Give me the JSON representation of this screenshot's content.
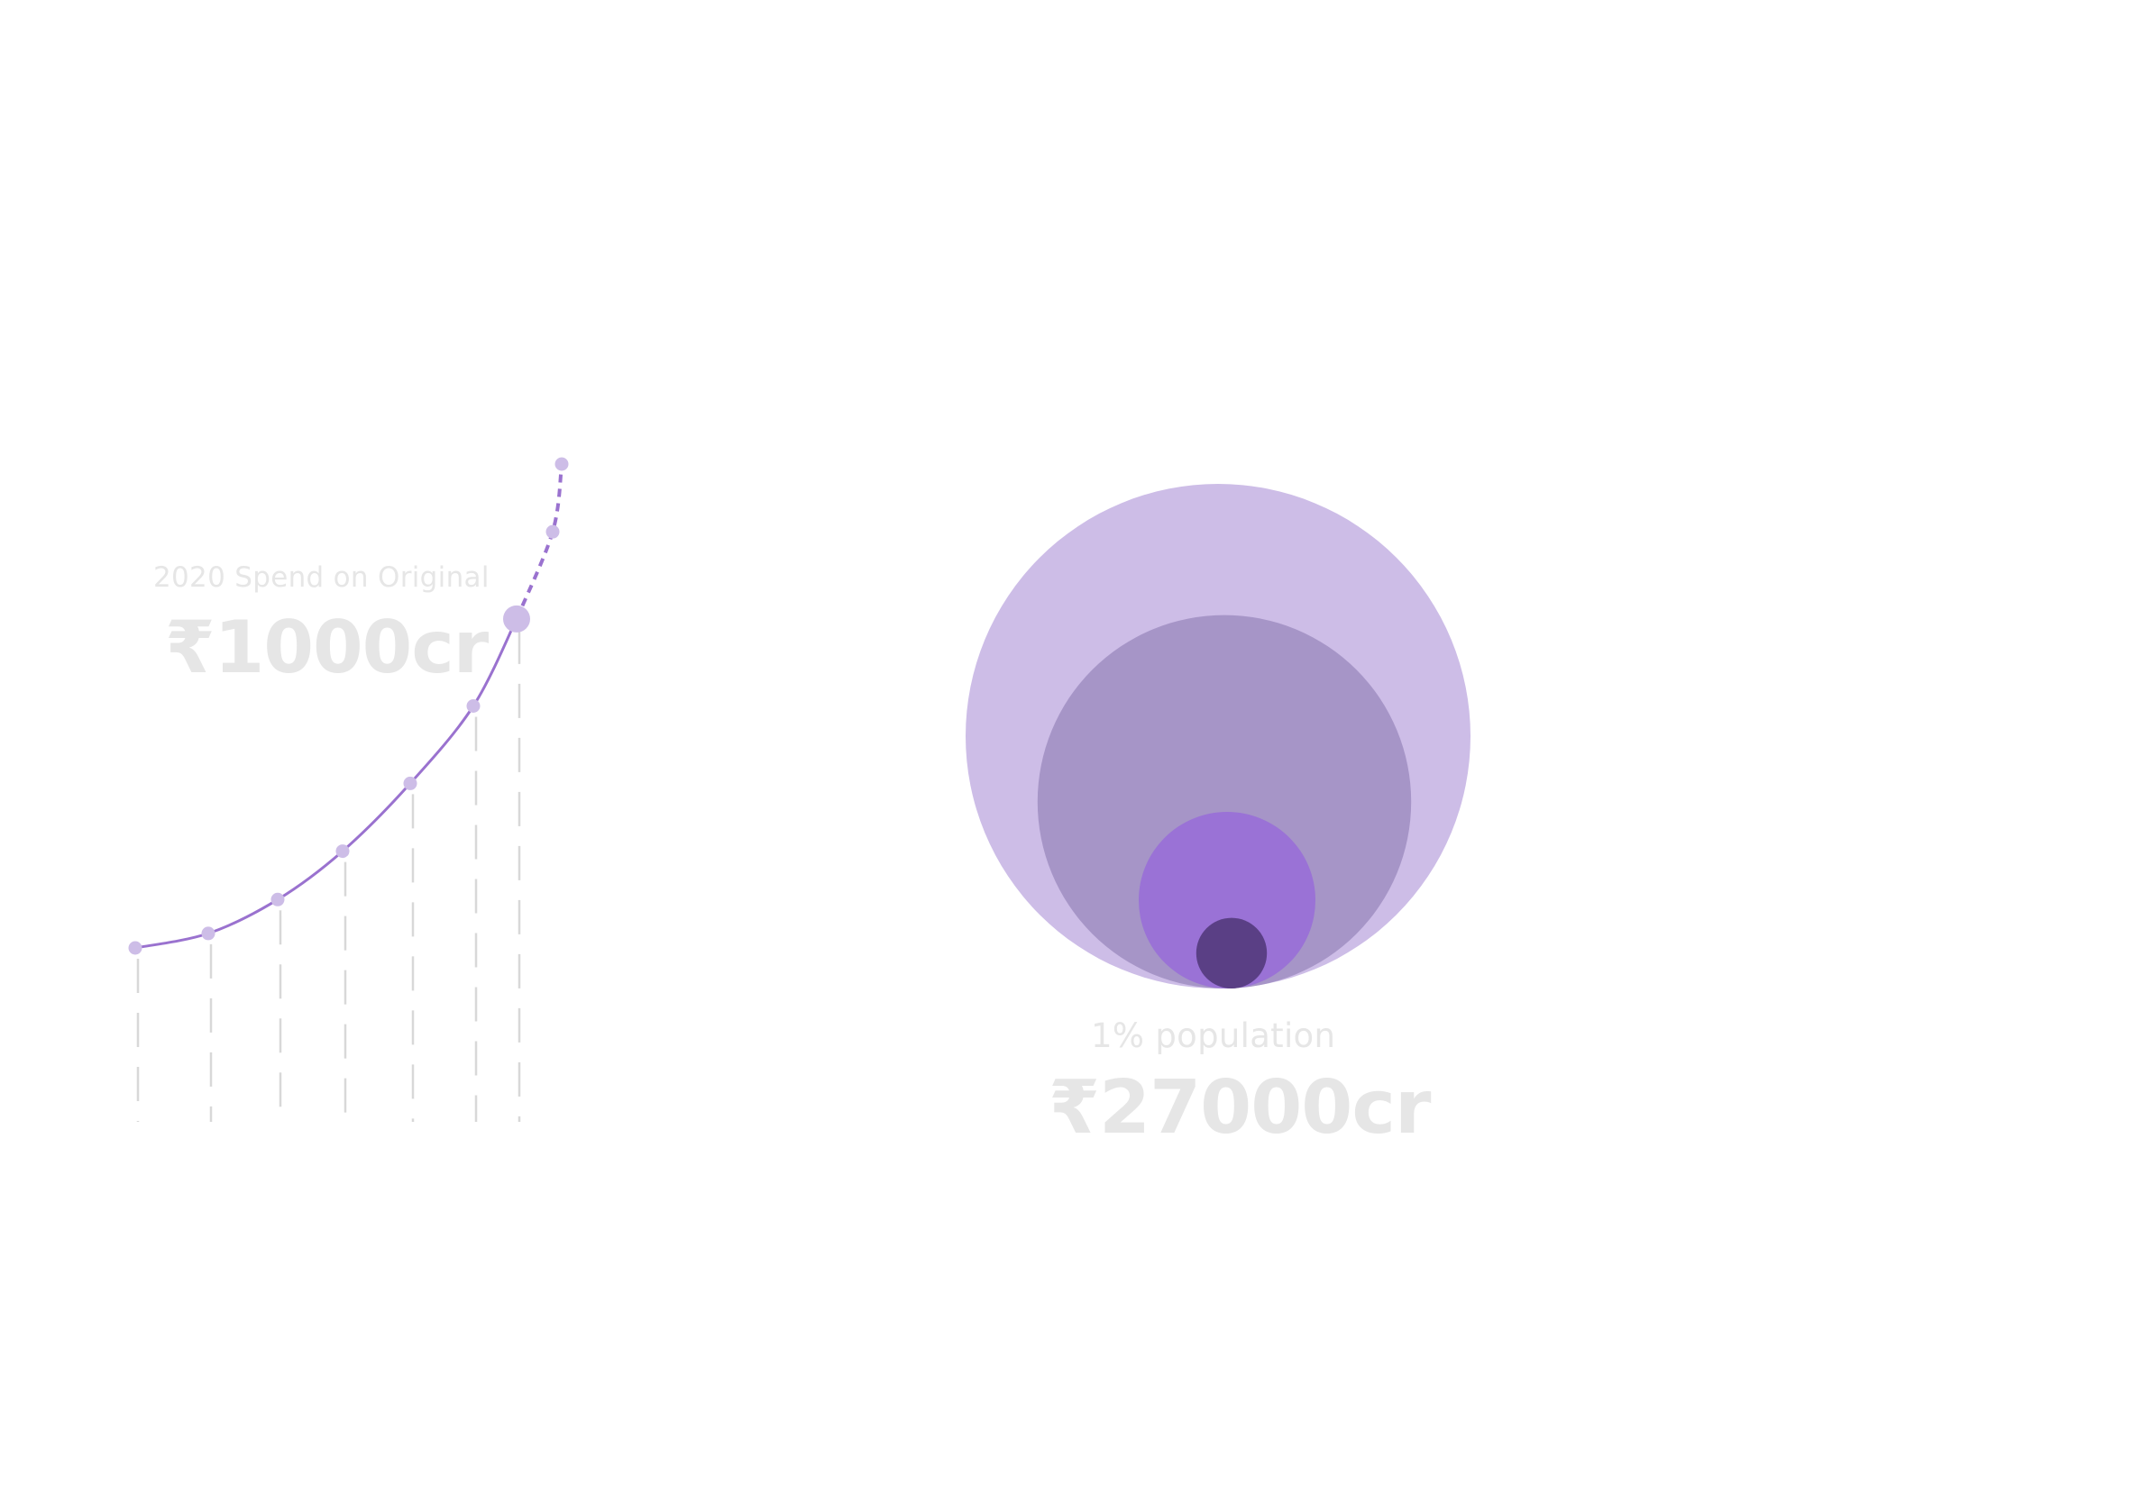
{
  "colors": {
    "line": "#9a72cf",
    "point": "#cdbde7",
    "dashed_gridline": "#d8d8d8",
    "circle_outer": "#cdbde7",
    "circle_second": "#a695c7",
    "circle_third": "#9a72d6",
    "circle_inner": "#5a3f85",
    "caption_text": "#e6e6e6"
  },
  "spend_caption": {
    "label": "2020 Spend on Original",
    "value": "₹1000cr"
  },
  "population_caption": {
    "label": "1% population",
    "value": "₹27000cr"
  },
  "chart_data": [
    {
      "type": "line",
      "title": "",
      "xlabel": "",
      "ylabel": "",
      "grid": "dashed vertical drop lines under each point",
      "legend": "none",
      "x": [
        1,
        2,
        3,
        4,
        5,
        6,
        7,
        8,
        9
      ],
      "series": [
        {
          "values": [
            0.0,
            0.03,
            0.1,
            0.2,
            0.34,
            0.5,
            0.68,
            0.86,
            1.0
          ],
          "style": "solid for first 7 points, dashed projection for last 2",
          "highlighted_point_index": 6
        }
      ]
    },
    {
      "type": "nested-circles",
      "title": "",
      "legend": "none",
      "values": [
        1.0,
        0.74,
        0.35,
        0.14
      ],
      "alignment": "bottom-aligned concentric bubbles"
    }
  ]
}
